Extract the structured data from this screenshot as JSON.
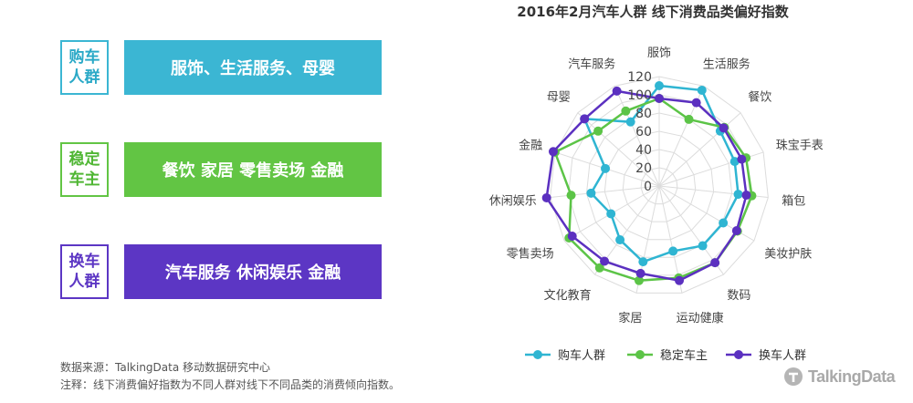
{
  "groups": [
    {
      "tag_line1": "购车",
      "tag_line2": "人群",
      "categories": "服饰、生活服务、母婴",
      "color": "#3bb6d3"
    },
    {
      "tag_line1": "稳定",
      "tag_line2": "车主",
      "categories": "餐饮 家居 零售卖场 金融",
      "color": "#62c544"
    },
    {
      "tag_line1": "换车",
      "tag_line2": "人群",
      "categories": "汽车服务 休闲娱乐 金融",
      "color": "#5c36c4"
    }
  ],
  "footnotes": {
    "source": "数据来源：TalkingData 移动数据研究中心",
    "note": "注释：线下消费偏好指数为不同人群对线下不同品类的消费倾向指数。"
  },
  "logo": {
    "text": "TalkingData"
  },
  "chart_data": {
    "type": "radar",
    "title": "2016年2月汽车人群 线下消费品类偏好指数",
    "categories": [
      "服饰",
      "生活服务",
      "餐饮",
      "珠宝手表",
      "箱包",
      "美妆护肤",
      "数码",
      "运动健康",
      "家居",
      "文化教育",
      "零售卖场",
      "休闲娱乐",
      "金融",
      "母婴",
      "汽车服务"
    ],
    "axis_ticks": [
      "0",
      "20",
      "40",
      "60",
      "80",
      "100",
      "120"
    ],
    "range": [
      0,
      120
    ],
    "series": [
      {
        "name": "购车人群",
        "color": "#2fb5d2",
        "values": [
          110,
          115,
          90,
          87,
          87,
          81,
          81,
          73,
          85,
          73,
          61,
          75,
          62,
          110,
          77
        ]
      },
      {
        "name": "稳定车主",
        "color": "#5cc447",
        "values": [
          96,
          80,
          96,
          100,
          102,
          99,
          104,
          103,
          106,
          111,
          114,
          97,
          120,
          90,
          90
        ]
      },
      {
        "name": "换车人群",
        "color": "#5b30c0",
        "values": [
          96,
          100,
          95,
          95,
          96,
          98,
          104,
          106,
          98,
          102,
          110,
          124,
          122,
          110,
          114
        ]
      }
    ],
    "legend_position": "bottom"
  }
}
